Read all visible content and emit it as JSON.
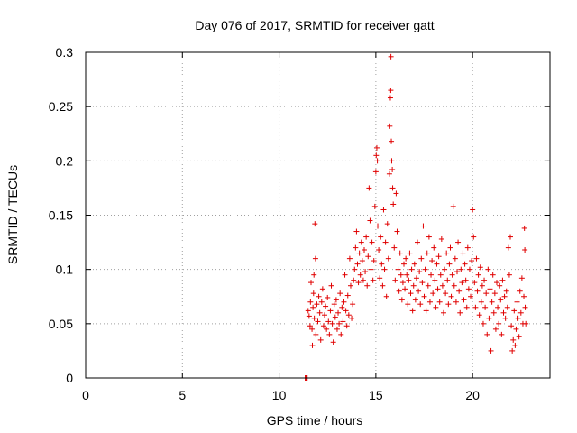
{
  "chart_data": {
    "type": "scatter",
    "title": "Day 076 of 2017, SRMTID for receiver gatt",
    "xlabel": "GPS time / hours",
    "ylabel": "SRMTID / TECUs",
    "xlim": [
      0,
      24
    ],
    "ylim": [
      0,
      0.3
    ],
    "x_ticks": [
      0,
      5,
      10,
      15,
      20
    ],
    "x_tick_labels": [
      "0",
      "5",
      "10",
      "15",
      "20"
    ],
    "y_ticks": [
      0,
      0.05,
      0.1,
      0.15,
      0.2,
      0.25,
      0.3
    ],
    "y_tick_labels": [
      "0",
      "0.05",
      "0.1",
      "0.15",
      "0.2",
      "0.25",
      "0.3"
    ],
    "grid": true,
    "marker": "+",
    "color": "#e00000",
    "series": [
      {
        "name": "SRMTID",
        "points": [
          [
            11.35,
            0.0
          ],
          [
            11.38,
            0.0
          ],
          [
            11.42,
            0.0
          ],
          [
            11.45,
            0.0
          ],
          [
            11.5,
            0.062
          ],
          [
            11.55,
            0.057
          ],
          [
            11.6,
            0.048
          ],
          [
            11.62,
            0.07
          ],
          [
            11.65,
            0.088
          ],
          [
            11.7,
            0.045
          ],
          [
            11.72,
            0.03
          ],
          [
            11.75,
            0.065
          ],
          [
            11.78,
            0.078
          ],
          [
            11.8,
            0.095
          ],
          [
            11.82,
            0.055
          ],
          [
            11.85,
            0.142
          ],
          [
            11.88,
            0.11
          ],
          [
            11.9,
            0.04
          ],
          [
            11.95,
            0.068
          ],
          [
            12.0,
            0.052
          ],
          [
            12.05,
            0.075
          ],
          [
            12.1,
            0.06
          ],
          [
            12.15,
            0.035
          ],
          [
            12.2,
            0.07
          ],
          [
            12.25,
            0.082
          ],
          [
            12.3,
            0.048
          ],
          [
            12.35,
            0.058
          ],
          [
            12.4,
            0.066
          ],
          [
            12.45,
            0.045
          ],
          [
            12.5,
            0.074
          ],
          [
            12.55,
            0.052
          ],
          [
            12.6,
            0.04
          ],
          [
            12.65,
            0.062
          ],
          [
            12.7,
            0.085
          ],
          [
            12.75,
            0.05
          ],
          [
            12.8,
            0.033
          ],
          [
            12.85,
            0.068
          ],
          [
            12.9,
            0.056
          ],
          [
            12.95,
            0.072
          ],
          [
            13.0,
            0.045
          ],
          [
            13.05,
            0.06
          ],
          [
            13.1,
            0.05
          ],
          [
            13.15,
            0.078
          ],
          [
            13.2,
            0.04
          ],
          [
            13.25,
            0.065
          ],
          [
            13.3,
            0.052
          ],
          [
            13.35,
            0.07
          ],
          [
            13.4,
            0.095
          ],
          [
            13.45,
            0.062
          ],
          [
            13.5,
            0.048
          ],
          [
            13.55,
            0.076
          ],
          [
            13.6,
            0.058
          ],
          [
            13.65,
            0.11
          ],
          [
            13.7,
            0.085
          ],
          [
            13.75,
            0.055
          ],
          [
            13.8,
            0.068
          ],
          [
            13.85,
            0.09
          ],
          [
            13.9,
            0.1
          ],
          [
            13.95,
            0.12
          ],
          [
            14.0,
            0.135
          ],
          [
            14.05,
            0.105
          ],
          [
            14.1,
            0.088
          ],
          [
            14.15,
            0.115
          ],
          [
            14.2,
            0.095
          ],
          [
            14.25,
            0.125
          ],
          [
            14.3,
            0.108
          ],
          [
            14.35,
            0.09
          ],
          [
            14.4,
            0.118
          ],
          [
            14.45,
            0.098
          ],
          [
            14.5,
            0.13
          ],
          [
            14.55,
            0.085
          ],
          [
            14.6,
            0.112
          ],
          [
            14.65,
            0.175
          ],
          [
            14.7,
            0.145
          ],
          [
            14.75,
            0.1
          ],
          [
            14.8,
            0.125
          ],
          [
            14.85,
            0.09
          ],
          [
            14.9,
            0.108
          ],
          [
            14.95,
            0.158
          ],
          [
            15.0,
            0.19
          ],
          [
            15.02,
            0.205
          ],
          [
            15.05,
            0.212
          ],
          [
            15.08,
            0.2
          ],
          [
            15.1,
            0.14
          ],
          [
            15.15,
            0.118
          ],
          [
            15.2,
            0.092
          ],
          [
            15.25,
            0.13
          ],
          [
            15.3,
            0.105
          ],
          [
            15.35,
            0.085
          ],
          [
            15.4,
            0.155
          ],
          [
            15.45,
            0.1
          ],
          [
            15.5,
            0.125
          ],
          [
            15.55,
            0.075
          ],
          [
            15.6,
            0.142
          ],
          [
            15.65,
            0.11
          ],
          [
            15.7,
            0.188
          ],
          [
            15.72,
            0.232
          ],
          [
            15.75,
            0.258
          ],
          [
            15.77,
            0.265
          ],
          [
            15.78,
            0.296
          ],
          [
            15.8,
            0.218
          ],
          [
            15.82,
            0.2
          ],
          [
            15.85,
            0.192
          ],
          [
            15.87,
            0.175
          ],
          [
            15.9,
            0.16
          ],
          [
            15.95,
            0.12
          ],
          [
            16.0,
            0.09
          ],
          [
            16.05,
            0.17
          ],
          [
            16.1,
            0.135
          ],
          [
            16.15,
            0.1
          ],
          [
            16.2,
            0.08
          ],
          [
            16.25,
            0.115
          ],
          [
            16.3,
            0.095
          ],
          [
            16.35,
            0.072
          ],
          [
            16.4,
            0.088
          ],
          [
            16.45,
            0.105
          ],
          [
            16.5,
            0.082
          ],
          [
            16.55,
            0.11
          ],
          [
            16.6,
            0.095
          ],
          [
            16.65,
            0.068
          ],
          [
            16.7,
            0.09
          ],
          [
            16.75,
            0.115
          ],
          [
            16.8,
            0.078
          ],
          [
            16.85,
            0.1
          ],
          [
            16.9,
            0.062
          ],
          [
            16.95,
            0.085
          ],
          [
            17.0,
            0.105
          ],
          [
            17.05,
            0.072
          ],
          [
            17.1,
            0.092
          ],
          [
            17.15,
            0.125
          ],
          [
            17.2,
            0.08
          ],
          [
            17.25,
            0.098
          ],
          [
            17.3,
            0.068
          ],
          [
            17.35,
            0.11
          ],
          [
            17.4,
            0.088
          ],
          [
            17.45,
            0.14
          ],
          [
            17.5,
            0.075
          ],
          [
            17.55,
            0.1
          ],
          [
            17.6,
            0.062
          ],
          [
            17.65,
            0.115
          ],
          [
            17.7,
            0.085
          ],
          [
            17.75,
            0.13
          ],
          [
            17.8,
            0.07
          ],
          [
            17.85,
            0.095
          ],
          [
            17.9,
            0.108
          ],
          [
            17.95,
            0.078
          ],
          [
            18.0,
            0.12
          ],
          [
            18.05,
            0.09
          ],
          [
            18.1,
            0.065
          ],
          [
            18.15,
            0.105
          ],
          [
            18.2,
            0.082
          ],
          [
            18.25,
            0.112
          ],
          [
            18.3,
            0.07
          ],
          [
            18.35,
            0.095
          ],
          [
            18.4,
            0.128
          ],
          [
            18.45,
            0.085
          ],
          [
            18.5,
            0.06
          ],
          [
            18.55,
            0.1
          ],
          [
            18.6,
            0.078
          ],
          [
            18.65,
            0.115
          ],
          [
            18.7,
            0.09
          ],
          [
            18.75,
            0.068
          ],
          [
            18.8,
            0.105
          ],
          [
            18.85,
            0.12
          ],
          [
            18.9,
            0.075
          ],
          [
            18.95,
            0.095
          ],
          [
            19.0,
            0.158
          ],
          [
            19.05,
            0.085
          ],
          [
            19.1,
            0.11
          ],
          [
            19.15,
            0.07
          ],
          [
            19.2,
            0.098
          ],
          [
            19.25,
            0.125
          ],
          [
            19.3,
            0.08
          ],
          [
            19.35,
            0.06
          ],
          [
            19.4,
            0.1
          ],
          [
            19.45,
            0.088
          ],
          [
            19.5,
            0.115
          ],
          [
            19.55,
            0.072
          ],
          [
            19.6,
            0.105
          ],
          [
            19.65,
            0.09
          ],
          [
            19.7,
            0.065
          ],
          [
            19.75,
            0.12
          ],
          [
            19.8,
            0.082
          ],
          [
            19.85,
            0.1
          ],
          [
            19.9,
            0.075
          ],
          [
            19.95,
            0.108
          ],
          [
            20.0,
            0.155
          ],
          [
            20.05,
            0.13
          ],
          [
            20.1,
            0.088
          ],
          [
            20.15,
            0.065
          ],
          [
            20.2,
            0.11
          ],
          [
            20.25,
            0.08
          ],
          [
            20.3,
            0.095
          ],
          [
            20.35,
            0.058
          ],
          [
            20.4,
            0.102
          ],
          [
            20.45,
            0.07
          ],
          [
            20.5,
            0.085
          ],
          [
            20.55,
            0.05
          ],
          [
            20.6,
            0.09
          ],
          [
            20.65,
            0.065
          ],
          [
            20.7,
            0.078
          ],
          [
            20.75,
            0.04
          ],
          [
            20.8,
            0.1
          ],
          [
            20.85,
            0.055
          ],
          [
            20.9,
            0.082
          ],
          [
            20.95,
            0.025
          ],
          [
            21.0,
            0.07
          ],
          [
            21.05,
            0.095
          ],
          [
            21.1,
            0.06
          ],
          [
            21.15,
            0.078
          ],
          [
            21.2,
            0.045
          ],
          [
            21.25,
            0.088
          ],
          [
            21.3,
            0.065
          ],
          [
            21.35,
            0.05
          ],
          [
            21.4,
            0.085
          ],
          [
            21.45,
            0.072
          ],
          [
            21.5,
            0.04
          ],
          [
            21.55,
            0.09
          ],
          [
            21.6,
            0.06
          ],
          [
            21.65,
            0.075
          ],
          [
            21.7,
            0.055
          ],
          [
            21.75,
            0.08
          ],
          [
            21.8,
            0.065
          ],
          [
            21.85,
            0.12
          ],
          [
            21.9,
            0.095
          ],
          [
            21.95,
            0.13
          ],
          [
            22.0,
            0.048
          ],
          [
            22.05,
            0.025
          ],
          [
            22.1,
            0.035
          ],
          [
            22.15,
            0.062
          ],
          [
            22.2,
            0.03
          ],
          [
            22.25,
            0.045
          ],
          [
            22.3,
            0.07
          ],
          [
            22.35,
            0.055
          ],
          [
            22.4,
            0.038
          ],
          [
            22.45,
            0.08
          ],
          [
            22.5,
            0.06
          ],
          [
            22.55,
            0.092
          ],
          [
            22.6,
            0.05
          ],
          [
            22.65,
            0.075
          ],
          [
            22.68,
            0.138
          ],
          [
            22.7,
            0.118
          ],
          [
            22.72,
            0.065
          ],
          [
            22.75,
            0.05
          ]
        ]
      }
    ]
  }
}
